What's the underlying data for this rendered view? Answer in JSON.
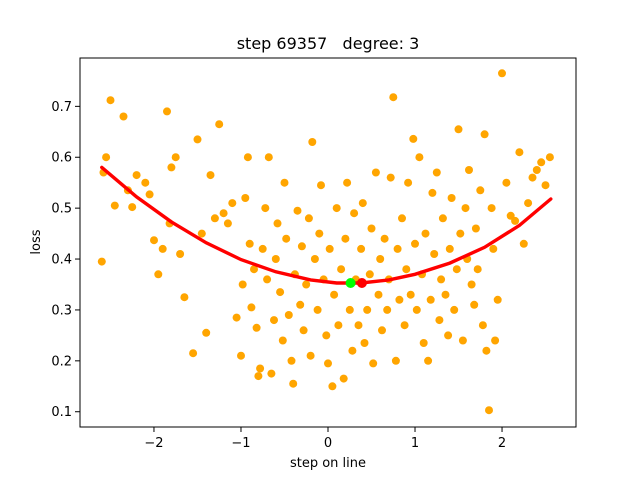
{
  "chart_data": {
    "type": "scatter",
    "title": "step 69357   degree: 3",
    "xlabel": "step on line",
    "ylabel": "loss",
    "xlim": [
      -2.85,
      2.85
    ],
    "ylim": [
      0.07,
      0.795
    ],
    "xticks": [
      -2,
      -1,
      0,
      1,
      2
    ],
    "yticks": [
      0.1,
      0.2,
      0.3,
      0.4,
      0.5,
      0.6,
      0.7
    ],
    "grid": false,
    "colors": {
      "points": "#ffa500",
      "fit": "#ff0000",
      "min_point": "#00ff00",
      "current_point": "#ff0000"
    },
    "fit_curve": {
      "name": "degree 3 fit",
      "x_range": [
        -2.6,
        2.56
      ],
      "points": [
        [
          -2.6,
          0.58
        ],
        [
          -2.2,
          0.522
        ],
        [
          -1.8,
          0.473
        ],
        [
          -1.4,
          0.432
        ],
        [
          -1.0,
          0.399
        ],
        [
          -0.6,
          0.375
        ],
        [
          -0.2,
          0.359
        ],
        [
          0.1,
          0.353
        ],
        [
          0.38,
          0.353
        ],
        [
          0.7,
          0.359
        ],
        [
          1.0,
          0.37
        ],
        [
          1.4,
          0.392
        ],
        [
          1.8,
          0.423
        ],
        [
          2.2,
          0.466
        ],
        [
          2.56,
          0.518
        ]
      ]
    },
    "highlight_points": [
      {
        "name": "minimum",
        "x": 0.26,
        "y": 0.353
      },
      {
        "name": "current",
        "x": 0.39,
        "y": 0.353
      }
    ],
    "scatter_points": [
      [
        -2.6,
        0.395
      ],
      [
        -2.58,
        0.57
      ],
      [
        -2.55,
        0.6
      ],
      [
        -2.5,
        0.712
      ],
      [
        -2.45,
        0.505
      ],
      [
        -2.35,
        0.68
      ],
      [
        -2.3,
        0.535
      ],
      [
        -2.25,
        0.502
      ],
      [
        -2.2,
        0.565
      ],
      [
        -2.1,
        0.55
      ],
      [
        -2.05,
        0.527
      ],
      [
        -2.0,
        0.437
      ],
      [
        -1.95,
        0.37
      ],
      [
        -1.9,
        0.42
      ],
      [
        -1.85,
        0.69
      ],
      [
        -1.82,
        0.47
      ],
      [
        -1.8,
        0.58
      ],
      [
        -1.75,
        0.6
      ],
      [
        -1.7,
        0.41
      ],
      [
        -1.65,
        0.325
      ],
      [
        -1.55,
        0.215
      ],
      [
        -1.5,
        0.635
      ],
      [
        -1.45,
        0.45
      ],
      [
        -1.4,
        0.255
      ],
      [
        -1.35,
        0.565
      ],
      [
        -1.3,
        0.48
      ],
      [
        -1.25,
        0.665
      ],
      [
        -1.2,
        0.49
      ],
      [
        -1.15,
        0.47
      ],
      [
        -1.1,
        0.51
      ],
      [
        -1.05,
        0.285
      ],
      [
        -1.0,
        0.21
      ],
      [
        -0.98,
        0.35
      ],
      [
        -0.95,
        0.52
      ],
      [
        -0.92,
        0.6
      ],
      [
        -0.9,
        0.43
      ],
      [
        -0.88,
        0.305
      ],
      [
        -0.85,
        0.38
      ],
      [
        -0.82,
        0.265
      ],
      [
        -0.8,
        0.17
      ],
      [
        -0.78,
        0.185
      ],
      [
        -0.75,
        0.42
      ],
      [
        -0.72,
        0.5
      ],
      [
        -0.7,
        0.36
      ],
      [
        -0.68,
        0.6
      ],
      [
        -0.65,
        0.175
      ],
      [
        -0.62,
        0.28
      ],
      [
        -0.6,
        0.4
      ],
      [
        -0.58,
        0.47
      ],
      [
        -0.55,
        0.335
      ],
      [
        -0.52,
        0.24
      ],
      [
        -0.5,
        0.55
      ],
      [
        -0.48,
        0.44
      ],
      [
        -0.45,
        0.29
      ],
      [
        -0.42,
        0.2
      ],
      [
        -0.4,
        0.155
      ],
      [
        -0.38,
        0.37
      ],
      [
        -0.35,
        0.495
      ],
      [
        -0.32,
        0.31
      ],
      [
        -0.3,
        0.425
      ],
      [
        -0.28,
        0.26
      ],
      [
        -0.25,
        0.35
      ],
      [
        -0.22,
        0.48
      ],
      [
        -0.2,
        0.21
      ],
      [
        -0.18,
        0.63
      ],
      [
        -0.15,
        0.4
      ],
      [
        -0.12,
        0.3
      ],
      [
        -0.1,
        0.45
      ],
      [
        -0.08,
        0.545
      ],
      [
        -0.05,
        0.36
      ],
      [
        -0.02,
        0.25
      ],
      [
        0.0,
        0.195
      ],
      [
        0.02,
        0.42
      ],
      [
        0.05,
        0.15
      ],
      [
        0.07,
        0.33
      ],
      [
        0.1,
        0.5
      ],
      [
        0.12,
        0.27
      ],
      [
        0.15,
        0.38
      ],
      [
        0.18,
        0.165
      ],
      [
        0.2,
        0.44
      ],
      [
        0.22,
        0.55
      ],
      [
        0.25,
        0.3
      ],
      [
        0.28,
        0.22
      ],
      [
        0.3,
        0.49
      ],
      [
        0.32,
        0.36
      ],
      [
        0.35,
        0.27
      ],
      [
        0.38,
        0.42
      ],
      [
        0.4,
        0.51
      ],
      [
        0.42,
        0.235
      ],
      [
        0.45,
        0.3
      ],
      [
        0.48,
        0.37
      ],
      [
        0.5,
        0.46
      ],
      [
        0.52,
        0.195
      ],
      [
        0.55,
        0.57
      ],
      [
        0.58,
        0.33
      ],
      [
        0.6,
        0.4
      ],
      [
        0.62,
        0.26
      ],
      [
        0.65,
        0.44
      ],
      [
        0.68,
        0.3
      ],
      [
        0.7,
        0.36
      ],
      [
        0.72,
        0.56
      ],
      [
        0.75,
        0.718
      ],
      [
        0.78,
        0.2
      ],
      [
        0.8,
        0.42
      ],
      [
        0.82,
        0.32
      ],
      [
        0.85,
        0.48
      ],
      [
        0.88,
        0.27
      ],
      [
        0.9,
        0.38
      ],
      [
        0.92,
        0.55
      ],
      [
        0.95,
        0.33
      ],
      [
        0.98,
        0.636
      ],
      [
        1.0,
        0.43
      ],
      [
        1.02,
        0.3
      ],
      [
        1.05,
        0.6
      ],
      [
        1.08,
        0.37
      ],
      [
        1.1,
        0.235
      ],
      [
        1.12,
        0.45
      ],
      [
        1.15,
        0.2
      ],
      [
        1.18,
        0.32
      ],
      [
        1.2,
        0.53
      ],
      [
        1.22,
        0.41
      ],
      [
        1.25,
        0.57
      ],
      [
        1.28,
        0.28
      ],
      [
        1.3,
        0.36
      ],
      [
        1.32,
        0.48
      ],
      [
        1.35,
        0.33
      ],
      [
        1.38,
        0.25
      ],
      [
        1.4,
        0.42
      ],
      [
        1.42,
        0.52
      ],
      [
        1.45,
        0.3
      ],
      [
        1.48,
        0.38
      ],
      [
        1.5,
        0.655
      ],
      [
        1.52,
        0.45
      ],
      [
        1.55,
        0.24
      ],
      [
        1.58,
        0.5
      ],
      [
        1.6,
        0.4
      ],
      [
        1.62,
        0.575
      ],
      [
        1.65,
        0.35
      ],
      [
        1.68,
        0.31
      ],
      [
        1.7,
        0.46
      ],
      [
        1.72,
        0.38
      ],
      [
        1.75,
        0.535
      ],
      [
        1.78,
        0.27
      ],
      [
        1.8,
        0.645
      ],
      [
        1.82,
        0.22
      ],
      [
        1.85,
        0.103
      ],
      [
        1.88,
        0.5
      ],
      [
        1.9,
        0.42
      ],
      [
        1.92,
        0.24
      ],
      [
        1.95,
        0.32
      ],
      [
        2.0,
        0.765
      ],
      [
        2.05,
        0.55
      ],
      [
        2.1,
        0.485
      ],
      [
        2.15,
        0.475
      ],
      [
        2.2,
        0.61
      ],
      [
        2.25,
        0.43
      ],
      [
        2.3,
        0.51
      ],
      [
        2.35,
        0.56
      ],
      [
        2.4,
        0.575
      ],
      [
        2.45,
        0.59
      ],
      [
        2.5,
        0.545
      ],
      [
        2.55,
        0.6
      ]
    ]
  }
}
